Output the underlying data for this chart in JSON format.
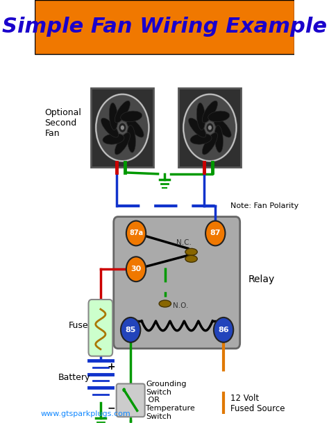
{
  "title": "Simple Fan Wiring Example",
  "title_color": "#1A00CC",
  "title_bg_color": "#F07800",
  "background_color": "#FFFFFF",
  "website": "www.gtsparkplugs.com",
  "website_color": "#1188FF",
  "relay_label": "Relay",
  "note_fan_polarity": "Note: Fan Polarity",
  "fan_label": "Optional\nSecond\nFan",
  "grounding_label": "Grounding\nSwitch\n OR\nTemperature\nSwitch",
  "fuse_label": "Fuse",
  "battery_label": "Battery",
  "volt_label": "12 Volt\nFused Source",
  "pin_color_orange": "#F07800",
  "pin_color_blue": "#2244BB",
  "color_blue": "#1133CC",
  "color_red": "#CC0000",
  "color_green": "#009900",
  "color_orange": "#E07800",
  "color_black": "#111111",
  "relay_bg": "#AAAAAA",
  "fan_bg": "#2a2a2a",
  "fan_ring": "#555555"
}
